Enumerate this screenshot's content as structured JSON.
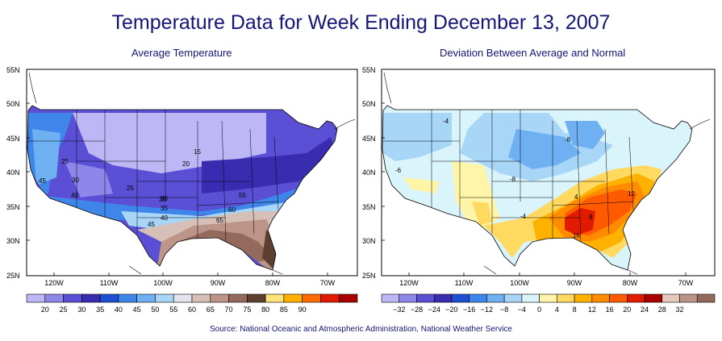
{
  "title": "Temperature Data for Week Ending December 13, 2007",
  "left_map": {
    "subtitle": "Average Temperature",
    "lat_labels": [
      "55N",
      "50N",
      "45N",
      "40N",
      "35N",
      "30N",
      "25N"
    ],
    "lon_labels": [
      "120W",
      "110W",
      "100W",
      "90W",
      "80W",
      "70W"
    ],
    "contour_labels": [
      "15",
      "20",
      "25",
      "25",
      "30",
      "35",
      "40",
      "45",
      "30",
      "35",
      "40",
      "45",
      "55",
      "60",
      "65"
    ],
    "colorbar": {
      "colors": [
        "#bdb7f5",
        "#8e86e8",
        "#5b4fd5",
        "#3a2cb0",
        "#1e4fd4",
        "#3f86ea",
        "#6fb0f2",
        "#a7d6f7",
        "#e6e1ee",
        "#d6bfb6",
        "#bd9488",
        "#936a5c",
        "#5e3e31",
        "#ffe27a",
        "#ffb100",
        "#ff6a00",
        "#e01b00",
        "#a80000"
      ],
      "labels": [
        "20",
        "25",
        "30",
        "35",
        "40",
        "45",
        "50",
        "55",
        "60",
        "65",
        "70",
        "75",
        "80",
        "85",
        "90"
      ]
    }
  },
  "right_map": {
    "subtitle": "Deviation Between Average and Normal",
    "lat_labels": [
      "55N",
      "50N",
      "45N",
      "40N",
      "35N",
      "30N",
      "25N"
    ],
    "lon_labels": [
      "120W",
      "110W",
      "100W",
      "90W",
      "80W",
      "70W"
    ],
    "contour_labels": [
      "-4",
      "-8",
      "-8",
      "-6",
      "-4",
      "4",
      "8",
      "12",
      "16"
    ],
    "colorbar": {
      "colors": [
        "#bdb7f5",
        "#8e86e8",
        "#5b4fd5",
        "#3a2cb0",
        "#1e4fd4",
        "#3f86ea",
        "#6fb0f2",
        "#a7d6f7",
        "#d9f4fb",
        "#fff5a8",
        "#ffd960",
        "#ffb100",
        "#ff8c00",
        "#ff5a00",
        "#e01b00",
        "#a80000",
        "#e6c7bd",
        "#bd9488",
        "#936a5c"
      ],
      "labels": [
        "−32",
        "−28",
        "−24",
        "−20",
        "−16",
        "−12",
        "−8",
        "−4",
        "0",
        "4",
        "8",
        "12",
        "16",
        "20",
        "24",
        "28",
        "32"
      ]
    }
  },
  "source": "Source:  National Oceanic and Atmospheric Administration, National Weather Service"
}
